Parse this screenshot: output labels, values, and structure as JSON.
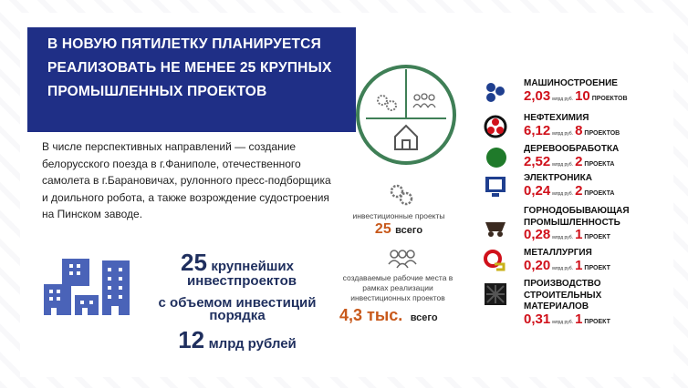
{
  "title": "В НОВУЮ ПЯТИЛЕТКУ ПЛАНИРУЕТСЯ РЕАЛИЗОВАТЬ НЕ МЕНЕЕ 25 КРУПНЫХ ПРОМЫШЛЕННЫХ ПРОЕКТОВ",
  "paragraph": "В числе перспективных направлений — создание белорусского поезда в г.Фаниполе, отечественного самолета в г.Барановичах, рулонного пресс-подборщика и доильного робота, а также возрождение судостроения на Пинском заводе.",
  "summary": {
    "count": "25",
    "count_label": "крупнейших",
    "count_label2": "инвестпроектов",
    "volume_label": "с объемом инвестиций",
    "volume_label2": "порядка",
    "amount": "12",
    "amount_unit": "млрд рублей"
  },
  "middle": {
    "projects_label": "инвестиционные проекты",
    "projects_value": "25",
    "projects_suffix": "всего",
    "jobs_label": "создаваемые рабочие места в рамках реализации инвестиционных проектов",
    "jobs_value": "4,3 тыс.",
    "jobs_suffix": "всего"
  },
  "colors": {
    "title_bg": "#1f2f86",
    "accent_red": "#d0111b",
    "accent_orange": "#c8591b",
    "circle_green": "#3f7f56",
    "building_blue": "#4a63b8"
  },
  "unit": "млрд руб.",
  "industries": [
    {
      "name": "МАШИНОСТРОЕНИЕ",
      "value": "2,03",
      "count": "10",
      "count_label": "ПРОЕКТОВ",
      "icon": "gears-icon"
    },
    {
      "name": "НЕФТЕХИМИЯ",
      "value": "6,12",
      "count": "8",
      "count_label": "ПРОЕКТОВ",
      "icon": "biohazard-icon"
    },
    {
      "name": "ДЕРЕВООБРАБОТКА",
      "value": "2,52",
      "count": "2",
      "count_label": "ПРОЕКТА",
      "icon": "tree-icon"
    },
    {
      "name": "ЭЛЕКТРОНИКА",
      "value": "0,24",
      "count": "2",
      "count_label": "ПРОЕКТА",
      "icon": "monitor-icon"
    },
    {
      "name": "ГОРНОДОБЫВАЮЩАЯ",
      "name2": "ПРОМЫШЛЕННОСТЬ",
      "value": "0,28",
      "count": "1",
      "count_label": "ПРОЕКТ",
      "icon": "mine-cart-icon"
    },
    {
      "name": "МЕТАЛЛУРГИЯ",
      "value": "0,20",
      "count": "1",
      "count_label": "ПРОЕКТ",
      "icon": "ladle-icon"
    },
    {
      "name": "ПРОИЗВОДСТВО",
      "name2": "СТРОИТЕЛЬНЫХ",
      "name3": "МАТЕРИАЛОВ",
      "value": "0,31",
      "count": "1",
      "count_label": "ПРОЕКТ",
      "icon": "material-icon"
    }
  ]
}
